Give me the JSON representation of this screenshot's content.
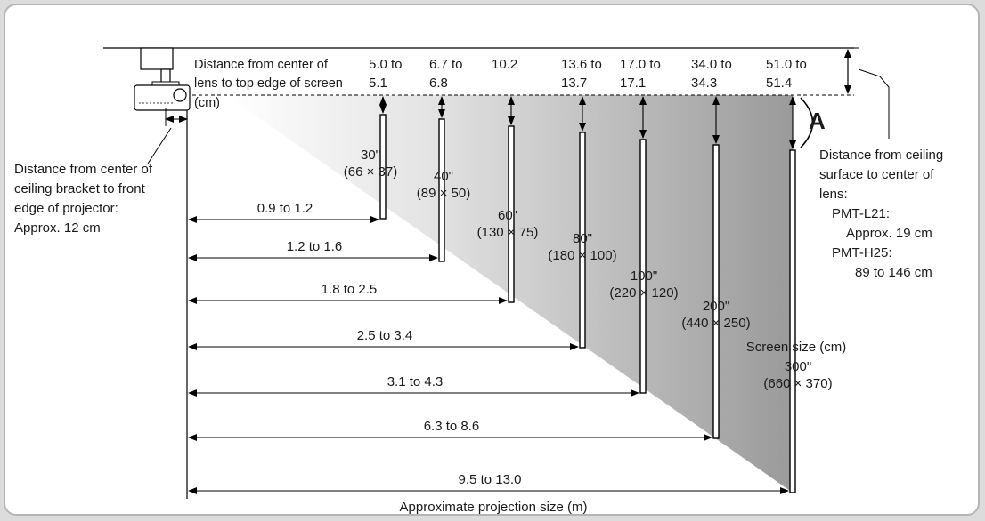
{
  "labels": {
    "lens_to_screen": [
      "Distance from center of",
      "lens to top edge of screen",
      "(cm)"
    ],
    "bracket_to_front": [
      "Distance from center of",
      "ceiling bracket to front",
      "edge of projector:",
      "Approx. 12 cm"
    ],
    "ceiling_to_lens": [
      "Distance from ceiling",
      "surface to center of",
      "lens:",
      "PMT-L21:",
      "Approx. 19 cm",
      "PMT-H25:",
      "89 to 146 cm"
    ],
    "marker_a": "A",
    "screen_size_caption": "Screen size (cm)",
    "bottom_caption": "Approximate projection size (m)"
  },
  "offsets": [
    [
      "5.0 to",
      "5.1"
    ],
    [
      "6.7 to",
      "6.8"
    ],
    [
      "10.2",
      ""
    ],
    [
      "13.6 to",
      "13.7"
    ],
    [
      "17.0 to",
      "17.1"
    ],
    [
      "34.0 to",
      "34.3"
    ],
    [
      "51.0 to",
      "51.4"
    ]
  ],
  "screens": [
    {
      "size": "30\"",
      "dims": "(66 × 37)"
    },
    {
      "size": "40\"",
      "dims": "(89 × 50)"
    },
    {
      "size": "60\"",
      "dims": "(130 × 75)"
    },
    {
      "size": "80\"",
      "dims": "(180 × 100)"
    },
    {
      "size": "100\"",
      "dims": "(220 × 120)"
    },
    {
      "size": "200\"",
      "dims": "(440 × 250)"
    },
    {
      "size": "300\"",
      "dims": "(660 × 370)"
    }
  ],
  "distances": [
    "0.9 to 1.2",
    "1.2 to 1.6",
    "1.8 to 2.5",
    "2.5 to 3.4",
    "3.1 to 4.3",
    "6.3 to 8.6",
    "9.5 to 13.0"
  ],
  "colors": {
    "page_bg": "#dcdcdc",
    "frame_border": "#b5b5b5",
    "beam_dark": "#9a9a9a",
    "line": "#000000"
  }
}
